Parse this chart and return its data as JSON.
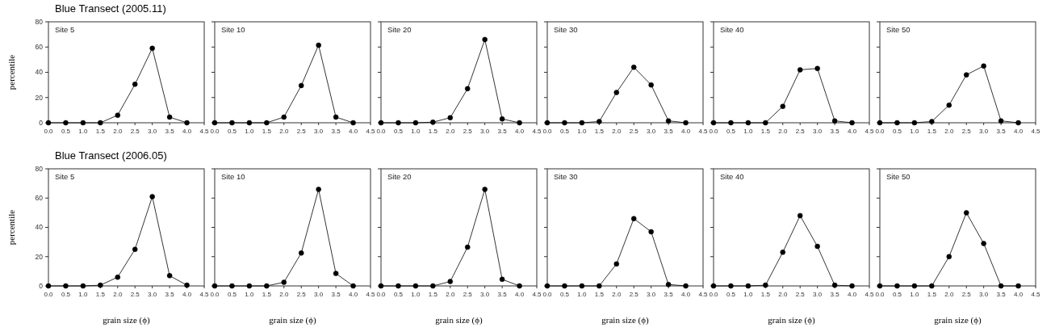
{
  "chart_data": [
    {
      "type": "line",
      "title": "Blue Transect (2005.11)",
      "ylabel": "percentile",
      "annotations": [
        "Site 5"
      ],
      "marker": "circle",
      "x": [
        0,
        0.5,
        1,
        1.5,
        2,
        2.5,
        3,
        3.5,
        4
      ],
      "series": [
        {
          "color": "#000000",
          "values": [
            0,
            0,
            0,
            0,
            6,
            30.5,
            59,
            4.5,
            0
          ]
        }
      ],
      "xlim": [
        0,
        4.5
      ],
      "xticks": [
        {
          "value": 0,
          "label": "0.0"
        },
        {
          "value": 0.5,
          "label": "0.5"
        },
        {
          "value": 1,
          "label": "1.0"
        },
        {
          "value": 1.5,
          "label": "1.5"
        },
        {
          "value": 2,
          "label": "2.0"
        },
        {
          "value": 2.5,
          "label": "2.5"
        },
        {
          "value": 3,
          "label": "3.0"
        },
        {
          "value": 3.5,
          "label": "3.5"
        },
        {
          "value": 4,
          "label": "4.0"
        },
        {
          "value": 4.5,
          "label": "4.5"
        }
      ],
      "ylim": [
        0,
        80
      ],
      "yticks": [
        0,
        20,
        40,
        60,
        80
      ]
    },
    {
      "type": "line",
      "annotations": [
        "Site 10"
      ],
      "marker": "circle",
      "tick_labels": "x",
      "x": [
        0,
        0.5,
        1,
        1.5,
        2,
        2.5,
        3,
        3.5,
        4
      ],
      "series": [
        {
          "color": "#000000",
          "values": [
            0,
            0,
            0,
            0,
            4.5,
            29.5,
            61.5,
            4.5,
            0
          ]
        }
      ],
      "xlim": [
        0,
        4.5
      ],
      "xticks": [
        {
          "value": 0,
          "label": "0.0"
        },
        {
          "value": 0.5,
          "label": "0.5"
        },
        {
          "value": 1,
          "label": "1.0"
        },
        {
          "value": 1.5,
          "label": "1.5"
        },
        {
          "value": 2,
          "label": "2.0"
        },
        {
          "value": 2.5,
          "label": "2.5"
        },
        {
          "value": 3,
          "label": "3.0"
        },
        {
          "value": 3.5,
          "label": "3.5"
        },
        {
          "value": 4,
          "label": "4.0"
        },
        {
          "value": 4.5,
          "label": "4.5"
        }
      ],
      "ylim": [
        0,
        80
      ],
      "yticks": [
        0,
        20,
        40,
        60,
        80
      ]
    },
    {
      "type": "line",
      "annotations": [
        "Site 20"
      ],
      "marker": "circle",
      "tick_labels": "x",
      "x": [
        0,
        0.5,
        1,
        1.5,
        2,
        2.5,
        3,
        3.5,
        4
      ],
      "series": [
        {
          "color": "#000000",
          "values": [
            0,
            0,
            0,
            0.5,
            4,
            27,
            66,
            3,
            0
          ]
        }
      ],
      "xlim": [
        0,
        4.5
      ],
      "xticks": [
        {
          "value": 0,
          "label": "0.0"
        },
        {
          "value": 0.5,
          "label": "0.5"
        },
        {
          "value": 1,
          "label": "1.0"
        },
        {
          "value": 1.5,
          "label": "1.5"
        },
        {
          "value": 2,
          "label": "2.0"
        },
        {
          "value": 2.5,
          "label": "2.5"
        },
        {
          "value": 3,
          "label": "3.0"
        },
        {
          "value": 3.5,
          "label": "3.5"
        },
        {
          "value": 4,
          "label": "4.0"
        },
        {
          "value": 4.5,
          "label": "4.5"
        }
      ],
      "ylim": [
        0,
        80
      ],
      "yticks": [
        0,
        20,
        40,
        60,
        80
      ]
    },
    {
      "type": "line",
      "annotations": [
        "Site 30"
      ],
      "marker": "circle",
      "tick_labels": "x",
      "x": [
        0,
        0.5,
        1,
        1.5,
        2,
        2.5,
        3,
        3.5,
        4
      ],
      "series": [
        {
          "color": "#000000",
          "values": [
            0,
            0,
            0,
            1,
            24,
            44,
            30,
            1.5,
            0
          ]
        }
      ],
      "xlim": [
        0,
        4.5
      ],
      "xticks": [
        {
          "value": 0,
          "label": "0.0"
        },
        {
          "value": 0.5,
          "label": "0.5"
        },
        {
          "value": 1,
          "label": "1.0"
        },
        {
          "value": 1.5,
          "label": "1.5"
        },
        {
          "value": 2,
          "label": "2.0"
        },
        {
          "value": 2.5,
          "label": "2.5"
        },
        {
          "value": 3,
          "label": "3.0"
        },
        {
          "value": 3.5,
          "label": "3.5"
        },
        {
          "value": 4,
          "label": "4.0"
        },
        {
          "value": 4.5,
          "label": "4.5"
        }
      ],
      "ylim": [
        0,
        80
      ],
      "yticks": [
        0,
        20,
        40,
        60,
        80
      ]
    },
    {
      "type": "line",
      "annotations": [
        "Site 40"
      ],
      "marker": "circle",
      "tick_labels": "x",
      "x": [
        0,
        0.5,
        1,
        1.5,
        2,
        2.5,
        3,
        3.5,
        4
      ],
      "series": [
        {
          "color": "#000000",
          "values": [
            0,
            0,
            0,
            0,
            13,
            42,
            43,
            1.5,
            0
          ]
        }
      ],
      "xlim": [
        0,
        4.5
      ],
      "xticks": [
        {
          "value": 0,
          "label": "0.0"
        },
        {
          "value": 0.5,
          "label": "0.5"
        },
        {
          "value": 1,
          "label": "1.0"
        },
        {
          "value": 1.5,
          "label": "1.5"
        },
        {
          "value": 2,
          "label": "2.0"
        },
        {
          "value": 2.5,
          "label": "2.5"
        },
        {
          "value": 3,
          "label": "3.0"
        },
        {
          "value": 3.5,
          "label": "3.5"
        },
        {
          "value": 4,
          "label": "4.0"
        },
        {
          "value": 4.5,
          "label": "4.5"
        }
      ],
      "ylim": [
        0,
        80
      ],
      "yticks": [
        0,
        20,
        40,
        60,
        80
      ]
    },
    {
      "type": "line",
      "annotations": [
        "Site 50"
      ],
      "marker": "circle",
      "tick_labels": "x",
      "x": [
        0,
        0.5,
        1,
        1.5,
        2,
        2.5,
        3,
        3.5,
        4
      ],
      "series": [
        {
          "color": "#000000",
          "values": [
            0,
            0,
            0,
            1,
            14,
            38,
            45,
            1.5,
            0
          ]
        }
      ],
      "xlim": [
        0,
        4.5
      ],
      "xticks": [
        {
          "value": 0,
          "label": "0.0"
        },
        {
          "value": 0.5,
          "label": "0.5"
        },
        {
          "value": 1,
          "label": "1.0"
        },
        {
          "value": 1.5,
          "label": "1.5"
        },
        {
          "value": 2,
          "label": "2.0"
        },
        {
          "value": 2.5,
          "label": "2.5"
        },
        {
          "value": 3,
          "label": "3.0"
        },
        {
          "value": 3.5,
          "label": "3.5"
        },
        {
          "value": 4,
          "label": "4.0"
        },
        {
          "value": 4.5,
          "label": "4.5"
        }
      ],
      "ylim": [
        0,
        80
      ],
      "yticks": [
        0,
        20,
        40,
        60,
        80
      ]
    },
    {
      "type": "line",
      "title": "Blue Transect (2006.05)",
      "ylabel": "percentile",
      "xlabel": "grain size (ϕ)",
      "annotations": [
        "Site 5"
      ],
      "marker": "circle",
      "x": [
        0,
        0.5,
        1,
        1.5,
        2,
        2.5,
        3,
        3.5,
        4
      ],
      "series": [
        {
          "color": "#000000",
          "values": [
            0,
            0,
            0,
            0.5,
            6,
            25,
            61,
            7,
            0.5
          ]
        }
      ],
      "xlim": [
        0,
        4.5
      ],
      "xticks": [
        {
          "value": 0,
          "label": "0.0"
        },
        {
          "value": 0.5,
          "label": "0.5"
        },
        {
          "value": 1,
          "label": "1.0"
        },
        {
          "value": 1.5,
          "label": "1.5"
        },
        {
          "value": 2,
          "label": "2.0"
        },
        {
          "value": 2.5,
          "label": "2.5"
        },
        {
          "value": 3,
          "label": "3.0"
        },
        {
          "value": 3.5,
          "label": "3.5"
        },
        {
          "value": 4,
          "label": "4.0"
        },
        {
          "value": 4.5,
          "label": "4.5"
        }
      ],
      "ylim": [
        0,
        80
      ],
      "yticks": [
        0,
        20,
        40,
        60,
        80
      ]
    },
    {
      "type": "line",
      "xlabel": "grain size (ϕ)",
      "annotations": [
        "Site 10"
      ],
      "marker": "circle",
      "tick_labels": "x",
      "x": [
        0,
        0.5,
        1,
        1.5,
        2,
        2.5,
        3,
        3.5,
        4
      ],
      "series": [
        {
          "color": "#000000",
          "values": [
            0,
            0,
            0,
            0,
            2.5,
            22.5,
            66,
            8.5,
            0
          ]
        }
      ],
      "xlim": [
        0,
        4.5
      ],
      "xticks": [
        {
          "value": 0,
          "label": "0.0"
        },
        {
          "value": 0.5,
          "label": "0.5"
        },
        {
          "value": 1,
          "label": "1.0"
        },
        {
          "value": 1.5,
          "label": "1.5"
        },
        {
          "value": 2,
          "label": "2.0"
        },
        {
          "value": 2.5,
          "label": "2.5"
        },
        {
          "value": 3,
          "label": "3.0"
        },
        {
          "value": 3.5,
          "label": "3.5"
        },
        {
          "value": 4,
          "label": "4.0"
        },
        {
          "value": 4.5,
          "label": "4.5"
        }
      ],
      "ylim": [
        0,
        80
      ],
      "yticks": [
        0,
        20,
        40,
        60,
        80
      ]
    },
    {
      "type": "line",
      "xlabel": "grain size (ϕ)",
      "annotations": [
        "Site 20"
      ],
      "marker": "circle",
      "tick_labels": "x",
      "x": [
        0,
        0.5,
        1,
        1.5,
        2,
        2.5,
        3,
        3.5,
        4
      ],
      "series": [
        {
          "color": "#000000",
          "values": [
            0,
            0,
            0,
            0,
            3,
            26.5,
            66,
            4.5,
            0
          ]
        }
      ],
      "xlim": [
        0,
        4.5
      ],
      "xticks": [
        {
          "value": 0,
          "label": "0.0"
        },
        {
          "value": 0.5,
          "label": "0.5"
        },
        {
          "value": 1,
          "label": "1.0"
        },
        {
          "value": 1.5,
          "label": "1.5"
        },
        {
          "value": 2,
          "label": "2.0"
        },
        {
          "value": 2.5,
          "label": "2.5"
        },
        {
          "value": 3,
          "label": "3.0"
        },
        {
          "value": 3.5,
          "label": "3.5"
        },
        {
          "value": 4,
          "label": "4.0"
        },
        {
          "value": 4.5,
          "label": "4.5"
        }
      ],
      "ylim": [
        0,
        80
      ],
      "yticks": [
        0,
        20,
        40,
        60,
        80
      ]
    },
    {
      "type": "line",
      "xlabel": "grain size (ϕ)",
      "annotations": [
        "Site 30"
      ],
      "marker": "circle",
      "tick_labels": "x",
      "x": [
        0,
        0.5,
        1,
        1.5,
        2,
        2.5,
        3,
        3.5,
        4
      ],
      "series": [
        {
          "color": "#000000",
          "values": [
            0,
            0,
            0,
            0,
            15,
            46,
            37,
            1,
            0
          ]
        }
      ],
      "xlim": [
        0,
        4.5
      ],
      "xticks": [
        {
          "value": 0,
          "label": "0.0"
        },
        {
          "value": 0.5,
          "label": "0.5"
        },
        {
          "value": 1,
          "label": "1.0"
        },
        {
          "value": 1.5,
          "label": "1.5"
        },
        {
          "value": 2,
          "label": "2.0"
        },
        {
          "value": 2.5,
          "label": "2.5"
        },
        {
          "value": 3,
          "label": "3.0"
        },
        {
          "value": 3.5,
          "label": "3.5"
        },
        {
          "value": 4,
          "label": "4.0"
        },
        {
          "value": 4.5,
          "label": "4.5"
        }
      ],
      "ylim": [
        0,
        80
      ],
      "yticks": [
        0,
        20,
        40,
        60,
        80
      ]
    },
    {
      "type": "line",
      "xlabel": "grain size (ϕ)",
      "annotations": [
        "Site 40"
      ],
      "marker": "circle",
      "tick_labels": "x",
      "x": [
        0,
        0.5,
        1,
        1.5,
        2,
        2.5,
        3,
        3.5,
        4
      ],
      "series": [
        {
          "color": "#000000",
          "values": [
            0,
            0,
            0,
            0.5,
            23,
            48,
            27,
            0.5,
            0
          ]
        }
      ],
      "xlim": [
        0,
        4.5
      ],
      "xticks": [
        {
          "value": 0,
          "label": "0.0"
        },
        {
          "value": 0.5,
          "label": "0.5"
        },
        {
          "value": 1,
          "label": "1.0"
        },
        {
          "value": 1.5,
          "label": "1.5"
        },
        {
          "value": 2,
          "label": "2.0"
        },
        {
          "value": 2.5,
          "label": "2.5"
        },
        {
          "value": 3,
          "label": "3.0"
        },
        {
          "value": 3.5,
          "label": "3.5"
        },
        {
          "value": 4,
          "label": "4.0"
        },
        {
          "value": 4.5,
          "label": "4.5"
        }
      ],
      "ylim": [
        0,
        80
      ],
      "yticks": [
        0,
        20,
        40,
        60,
        80
      ]
    },
    {
      "type": "line",
      "xlabel": "grain size (ϕ)",
      "annotations": [
        "Site 50"
      ],
      "marker": "circle",
      "tick_labels": "x",
      "x": [
        0,
        0.5,
        1,
        1.5,
        2,
        2.5,
        3,
        3.5,
        4
      ],
      "series": [
        {
          "color": "#000000",
          "values": [
            0,
            0,
            0,
            0,
            20,
            50,
            29,
            0,
            0
          ]
        }
      ],
      "xlim": [
        0,
        4.5
      ],
      "xticks": [
        {
          "value": 0,
          "label": "0.0"
        },
        {
          "value": 0.5,
          "label": "0.5"
        },
        {
          "value": 1,
          "label": "1.0"
        },
        {
          "value": 1.5,
          "label": "1.5"
        },
        {
          "value": 2,
          "label": "2.0"
        },
        {
          "value": 2.5,
          "label": "2.5"
        },
        {
          "value": 3,
          "label": "3.0"
        },
        {
          "value": 3.5,
          "label": "3.5"
        },
        {
          "value": 4,
          "label": "4.0"
        },
        {
          "value": 4.5,
          "label": "4.5"
        }
      ],
      "ylim": [
        0,
        80
      ],
      "yticks": [
        0,
        20,
        40,
        60,
        80
      ]
    }
  ]
}
